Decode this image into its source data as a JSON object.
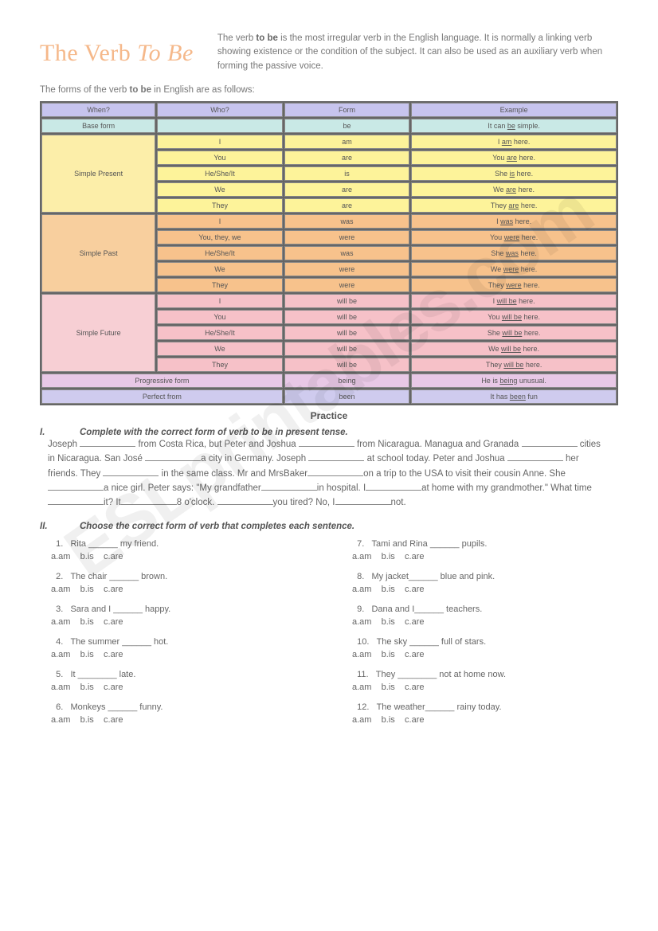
{
  "title_a": "The Verb ",
  "title_b": "To Be",
  "intro": "The verb <b>to be</b> is the most irregular verb in the English language. It is normally a linking verb showing existence or the condition of the subject. It can also be used as an auxiliary verb when forming the passive voice.",
  "subintro": "The forms of the verb <b>to be</b> in English are as follows:",
  "watermark": "ESLprintables.com",
  "table": {
    "headers": [
      "When?",
      "Who?",
      "Form",
      "Example"
    ],
    "base": {
      "when": "Base form",
      "who": "",
      "form": "be",
      "ex": "It can <span class='u'>be</span> simple."
    },
    "groups": [
      {
        "label": "Simple Present",
        "cls": "pres",
        "label_cls": "pres-label",
        "rows": [
          {
            "who": "I",
            "form": "am",
            "ex": "I <span class='u'>am</span> here."
          },
          {
            "who": "You",
            "form": "are",
            "ex": "You <span class='u'>are</span> here."
          },
          {
            "who": "He/She/It",
            "form": "is",
            "ex": "She <span class='u'>is</span> here."
          },
          {
            "who": "We",
            "form": "are",
            "ex": "We <span class='u'>are</span> here."
          },
          {
            "who": "They",
            "form": "are",
            "ex": "They <span class='u'>are</span> here."
          }
        ]
      },
      {
        "label": "Simple Past",
        "cls": "past",
        "label_cls": "past-label",
        "rows": [
          {
            "who": "I",
            "form": "was",
            "ex": "I <span class='u'>was</span> here."
          },
          {
            "who": "You, they, we",
            "form": "were",
            "ex": "You <span class='u'>were</span> here."
          },
          {
            "who": "He/She/It",
            "form": "was",
            "ex": "She <span class='u'>was</span> here."
          },
          {
            "who": "We",
            "form": "were",
            "ex": "We <span class='u'>were</span> here."
          },
          {
            "who": "They",
            "form": "were",
            "ex": "They <span class='u'>were</span> here."
          }
        ]
      },
      {
        "label": "Simple Future",
        "cls": "fut",
        "label_cls": "fut-label",
        "rows": [
          {
            "who": "I",
            "form": "will be",
            "ex": "I <span class='u'>will be</span> here."
          },
          {
            "who": "You",
            "form": "will be",
            "ex": "You <span class='u'>will be</span> here."
          },
          {
            "who": "He/She/It",
            "form": "will be",
            "ex": "She <span class='u'>will be</span> here."
          },
          {
            "who": "We",
            "form": "will be",
            "ex": "We <span class='u'>will be</span> here."
          },
          {
            "who": "They",
            "form": "will be",
            "ex": "They <span class='u'>will be</span> here."
          }
        ]
      }
    ],
    "prog": {
      "when": "Progressive form",
      "form": "being",
      "ex": "He is <span class='u'>being</span> unusual."
    },
    "perf": {
      "when": "Perfect from",
      "form": "been",
      "ex": "It has <span class='u'>been</span> fun"
    }
  },
  "practice_title": "Practice",
  "section1": {
    "head": "Complete with the correct form of verb to be in present tense.",
    "roman": "I."
  },
  "section2": {
    "head": "Choose the correct form of verb that completes each sentence.",
    "roman": "II.",
    "opts": "a.am&nbsp;&nbsp;&nbsp;&nbsp;b.is&nbsp;&nbsp;&nbsp;&nbsp;c. are",
    "opts2": "a.am&nbsp;&nbsp;&nbsp;&nbsp;b.is&nbsp;&nbsp;&nbsp;&nbsp;c.are",
    "opts3": "a. am&nbsp;&nbsp;&nbsp;&nbsp;b. is&nbsp;&nbsp;&nbsp;&nbsp;c.are",
    "left": [
      {
        "n": "1.",
        "t": "Rita ______ my friend."
      },
      {
        "n": "2.",
        "t": "The chair ______ brown."
      },
      {
        "n": "3.",
        "t": "Sara and I ______ happy."
      },
      {
        "n": "4.",
        "t": "The summer ______ hot."
      },
      {
        "n": "5.",
        "t": "It ________ late."
      },
      {
        "n": "6.",
        "t": "Monkeys ______ funny."
      }
    ],
    "right": [
      {
        "n": "7.",
        "t": "Tami and Rina ______ pupils."
      },
      {
        "n": "8.",
        "t": "My jacket______ blue and pink."
      },
      {
        "n": "9.",
        "t": "Dana and I______ teachers."
      },
      {
        "n": "10.",
        "t": "The sky ______ full of stars."
      },
      {
        "n": "11.",
        "t": "They ________ not at home now."
      },
      {
        "n": "12.",
        "t": "The weather______ rainy today."
      }
    ]
  }
}
